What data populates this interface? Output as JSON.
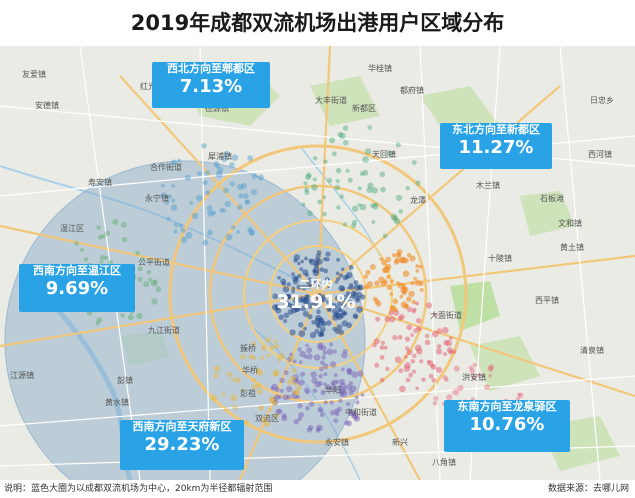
{
  "title": "2019年成都双流机场出港用户区域分布",
  "regions": {
    "northwest": {
      "label": "西北方向至郫都区",
      "value": "7.13%"
    },
    "northeast": {
      "label": "东北方向至新都区",
      "value": "11.27%"
    },
    "west": {
      "label": "西南方向至温江区",
      "value": "9.69%"
    },
    "center": {
      "label": "二环内",
      "value": "31.91%"
    },
    "south": {
      "label": "西南方向至天府新区",
      "value": "29.23%"
    },
    "southeast": {
      "label": "东南方向至龙泉驿区",
      "value": "10.76%"
    }
  },
  "places": {
    "p1": "友爱镇",
    "p2": "红光镇",
    "p3": "华桂镇",
    "p4": "德源镇",
    "p5": "犀浦镇",
    "p6": "安德镇",
    "p7": "合作街道",
    "p8": "永宁镇",
    "p9": "温江区",
    "p10": "公平街道",
    "p11": "寿安镇",
    "p12": "九江街道",
    "p13": "彭镇",
    "p14": "江源镇",
    "p15": "黄水镇",
    "p16": "簇桥",
    "p17": "华阳",
    "p18": "中和街道",
    "p19": "大丰街道",
    "p20": "天回镇",
    "p21": "新都区",
    "p22": "木兰镇",
    "p23": "龙潭",
    "p24": "十陵镇",
    "p25": "西河镇",
    "p26": "黄土镇",
    "p27": "文和镇",
    "p28": "石板滩",
    "p29": "西平镇",
    "p30": "八角镇",
    "p31": "洪安镇",
    "p32": "清泉镇",
    "p33": "日忠乡",
    "p34": "都府镇",
    "p35": "华桥",
    "p36": "大面街道",
    "p37": "彭祖",
    "p38": "永安镇",
    "p39": "双流区",
    "p40": "新兴"
  },
  "note": "说明：蓝色大圈为以成都双流机场为中心，20km为半径都辐射范围",
  "source": "数据来源：去哪儿网"
}
